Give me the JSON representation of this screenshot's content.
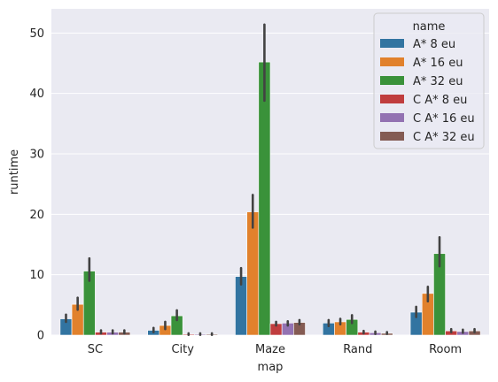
{
  "chart_data": {
    "type": "bar",
    "title": "",
    "xlabel": "map",
    "ylabel": "runtime",
    "categories": [
      "SC",
      "City",
      "Maze",
      "Rand",
      "Room"
    ],
    "ylim": [
      0,
      54
    ],
    "yticks": [
      0,
      10,
      20,
      30,
      40,
      50
    ],
    "grid": true,
    "legend": {
      "title": "name",
      "position": "top-right"
    },
    "series": [
      {
        "name": "A* 8 eu",
        "color": "#3274a1",
        "values": [
          2.7,
          0.8,
          9.7,
          2.0,
          3.8
        ],
        "err_low": [
          2.2,
          0.5,
          8.4,
          1.5,
          3.0
        ],
        "err_high": [
          3.4,
          1.2,
          11.1,
          2.5,
          4.7
        ]
      },
      {
        "name": "A* 16 eu",
        "color": "#e1812c",
        "values": [
          5.1,
          1.6,
          20.4,
          2.2,
          6.9
        ],
        "err_low": [
          4.2,
          1.0,
          17.8,
          1.8,
          5.6
        ],
        "err_high": [
          6.2,
          2.2,
          23.2,
          2.7,
          8.0
        ]
      },
      {
        "name": "A* 32 eu",
        "color": "#3a923a",
        "values": [
          10.6,
          3.2,
          45.2,
          2.6,
          13.5
        ],
        "err_low": [
          9.0,
          2.5,
          38.8,
          2.0,
          11.4
        ],
        "err_high": [
          12.7,
          4.1,
          51.4,
          3.3,
          16.2
        ]
      },
      {
        "name": "C A* 8 eu",
        "color": "#c03d3e",
        "values": [
          0.5,
          0.15,
          1.9,
          0.5,
          0.7
        ],
        "err_low": [
          0.3,
          0.05,
          1.6,
          0.3,
          0.5
        ],
        "err_high": [
          0.8,
          0.3,
          2.2,
          0.7,
          1.0
        ]
      },
      {
        "name": "C A* 16 eu",
        "color": "#9372b2",
        "values": [
          0.5,
          0.15,
          2.0,
          0.4,
          0.6
        ],
        "err_low": [
          0.3,
          0.05,
          1.6,
          0.2,
          0.4
        ],
        "err_high": [
          0.8,
          0.3,
          2.3,
          0.6,
          0.9
        ]
      },
      {
        "name": "C A* 32 eu",
        "color": "#845b53",
        "values": [
          0.5,
          0.15,
          2.1,
          0.3,
          0.7
        ],
        "err_low": [
          0.3,
          0.05,
          1.8,
          0.2,
          0.5
        ],
        "err_high": [
          0.8,
          0.3,
          2.5,
          0.5,
          1.0
        ]
      }
    ]
  }
}
